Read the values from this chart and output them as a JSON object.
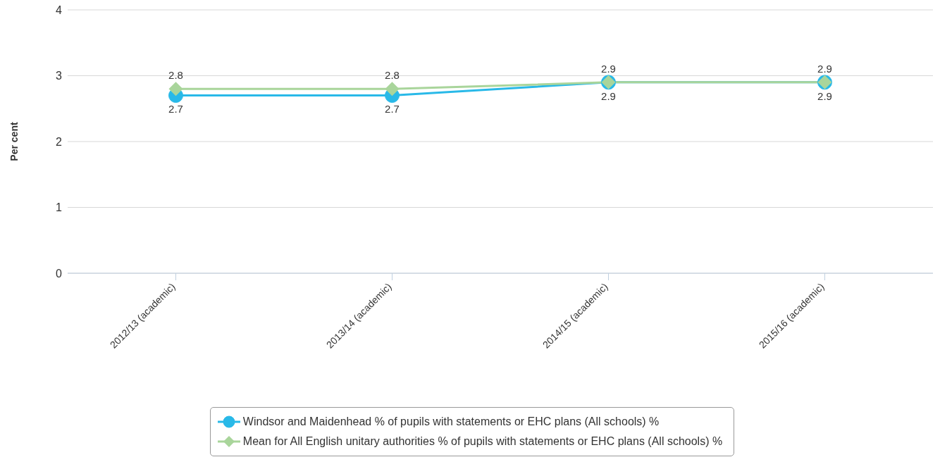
{
  "chart_data": {
    "type": "line",
    "ylabel": "Per cent",
    "categories": [
      "2012/13 (academic)",
      "2013/14 (academic)",
      "2014/15 (academic)",
      "2015/16 (academic)"
    ],
    "series": [
      {
        "name": "Windsor and Maidenhead % of pupils with statements or EHC plans (All schools) %",
        "color": "#29b9e8",
        "marker": "circle",
        "values": [
          2.7,
          2.7,
          2.9,
          2.9
        ]
      },
      {
        "name": "Mean for All English unitary authorities % of pupils with statements or EHC plans (All schools) %",
        "color": "#a9d59b",
        "marker": "diamond",
        "values": [
          2.8,
          2.8,
          2.9,
          2.9
        ]
      }
    ],
    "ylim": [
      0,
      4
    ],
    "yticks": [
      0,
      1,
      2,
      3,
      4
    ],
    "grid": "y",
    "legend": "bottom",
    "data_labels": true,
    "line_style": "solid"
  }
}
